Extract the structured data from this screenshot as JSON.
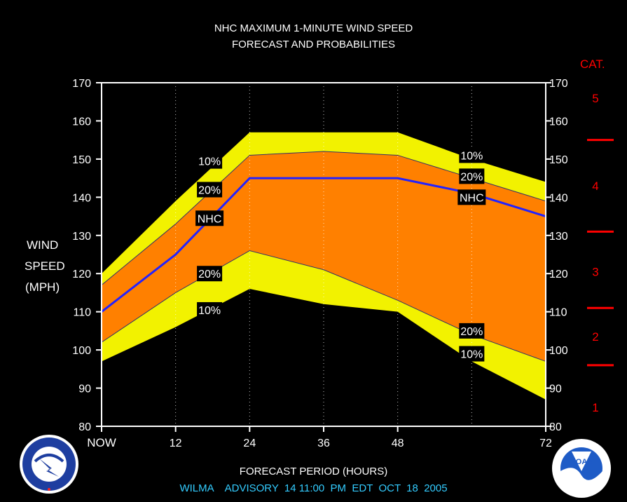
{
  "chart_data": {
    "type": "area",
    "title": "NHC MAXIMUM 1-MINUTE WIND SPEED",
    "subtitle": "FORECAST AND PROBABILITIES",
    "xlabel": "FORECAST PERIOD (HOURS)",
    "ylabel": [
      "WIND",
      "SPEED",
      "(MPH)"
    ],
    "xlim": [
      0,
      72
    ],
    "ylim": [
      80,
      170
    ],
    "x_ticks": [
      {
        "x": 0,
        "label": "NOW"
      },
      {
        "x": 12,
        "label": "12"
      },
      {
        "x": 24,
        "label": "24"
      },
      {
        "x": 36,
        "label": "36"
      },
      {
        "x": 48,
        "label": "48"
      },
      {
        "x": 72,
        "label": "72"
      }
    ],
    "x_minor_gridlines": [
      12,
      24,
      36,
      48,
      60
    ],
    "y_ticks": [
      80,
      90,
      100,
      110,
      120,
      130,
      140,
      150,
      160,
      170
    ],
    "x": [
      0,
      12,
      24,
      36,
      48,
      60,
      72
    ],
    "series": [
      {
        "name": "10%",
        "color": "#f2f200",
        "upper": [
          120,
          139,
          157,
          157,
          157,
          150,
          144
        ],
        "lower": [
          97,
          106,
          116,
          112,
          110,
          97,
          87
        ]
      },
      {
        "name": "20%",
        "color": "#ff8000",
        "upper": [
          117,
          133,
          151,
          152,
          151,
          145,
          139
        ],
        "lower": [
          102,
          115,
          126,
          121,
          113,
          104,
          97
        ]
      },
      {
        "name": "NHC",
        "color": "#2222ff",
        "values": [
          110,
          125,
          145,
          145,
          145,
          141,
          135
        ]
      }
    ],
    "band_labels": [
      {
        "text": "10%",
        "x": 17.5,
        "y": 149.5
      },
      {
        "text": "20%",
        "x": 17.5,
        "y": 142
      },
      {
        "text": "NHC",
        "x": 17.5,
        "y": 134.5
      },
      {
        "text": "20%",
        "x": 17.5,
        "y": 120
      },
      {
        "text": "10%",
        "x": 17.5,
        "y": 110.5
      },
      {
        "text": "10%",
        "x": 60,
        "y": 151
      },
      {
        "text": "20%",
        "x": 60,
        "y": 145.5
      },
      {
        "text": "NHC",
        "x": 60,
        "y": 140
      },
      {
        "text": "20%",
        "x": 60,
        "y": 105
      },
      {
        "text": "10%",
        "x": 60,
        "y": 99
      }
    ],
    "categories_axis": {
      "title": "CAT.",
      "color": "#ff0000",
      "boundaries_mph": [
        96,
        111,
        131,
        155
      ],
      "labels": [
        {
          "text": "1",
          "mph": 85
        },
        {
          "text": "2",
          "mph": 103.5
        },
        {
          "text": "3",
          "mph": 120.5
        },
        {
          "text": "4",
          "mph": 143
        },
        {
          "text": "5",
          "mph": 166
        }
      ]
    }
  },
  "footer": {
    "advisory": "WILMA    ADVISORY  14 11:00  PM  EDT  OCT  18  2005"
  },
  "logos": {
    "left": {
      "icon": "nws-seal-icon",
      "text": "NATIONAL WEATHER SERVICE"
    },
    "right": {
      "icon": "noaa-seal-icon",
      "text": "NOAA"
    }
  },
  "colors": {
    "background": "#000000",
    "band_10": "#f2f200",
    "band_20": "#ff8000",
    "nhc_line": "#2222ff",
    "category": "#ff0000",
    "advisory": "#33ccff"
  }
}
